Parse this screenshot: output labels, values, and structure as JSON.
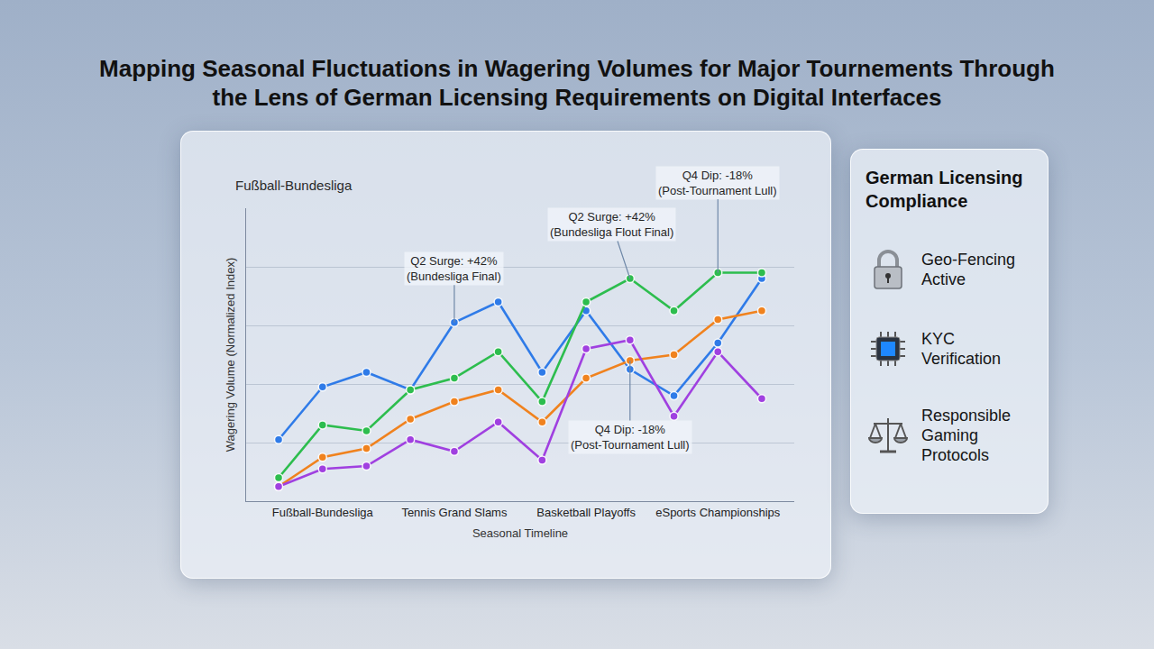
{
  "chart_data": {
    "type": "line",
    "title": "Mapping Seasonal Fluctuations in Wagering Volumes for Major Tournements Through the Lens of German Licensing Requirements on Digital Interfaces",
    "subtitle": "Fußball-Bundesliga",
    "x_label": "Seasonal Timeline",
    "y_label": "Wagering Volume (Normalized Index)",
    "categories": [
      null,
      "Fußball-Bundesliga",
      null,
      null,
      "Tennis Grand Slams",
      null,
      null,
      "Basketball Playoffs",
      null,
      null,
      "eSports Championships",
      null
    ],
    "series": [
      {
        "color": "#2f7be8",
        "marker": "circle",
        "line_style": "solid",
        "values": [
          21,
          39,
          44,
          38,
          61,
          68,
          44,
          65,
          45,
          36,
          54,
          76
        ]
      },
      {
        "color": "#2dbd4e",
        "marker": "circle",
        "line_style": "solid",
        "values": [
          8,
          26,
          24,
          38,
          42,
          51,
          34,
          68,
          76,
          65,
          78,
          78
        ]
      },
      {
        "color": "#f0821e",
        "marker": "circle",
        "line_style": "solid",
        "values": [
          5,
          15,
          18,
          28,
          34,
          38,
          27,
          42,
          48,
          50,
          62,
          65
        ]
      },
      {
        "color": "#a040e0",
        "marker": "circle",
        "line_style": "solid",
        "values": [
          5,
          11,
          12,
          21,
          17,
          27,
          14,
          52,
          55,
          29,
          51,
          35
        ]
      }
    ],
    "ylim": [
      0,
      100
    ],
    "yticks": [
      0,
      20,
      40,
      60,
      80,
      100
    ],
    "grid": true,
    "tick_labels": "x",
    "annotations": [
      {
        "text": [
          "Q2 Surge: +42%",
          "(Bundesliga Final)"
        ],
        "x": 4,
        "y": 61
      },
      {
        "text": [
          "Q2 Surge: +42%",
          "(Bundesliga Flout Final)"
        ],
        "x": 8,
        "y": 76
      },
      {
        "text": [
          "Q4 Dip: -18%",
          "(Post-Tournament Lull)"
        ],
        "x": 10,
        "y": 78
      },
      {
        "text": [
          "Q4 Dip: -18%",
          "(Post-Tournament Lull)"
        ],
        "x": 8,
        "y": 48
      }
    ]
  },
  "compliance_panel": {
    "title": "German Licensing Compliance",
    "items": [
      "Geo-Fencing Active",
      "KYC Verification",
      "Responsible Gaming Protocols"
    ]
  }
}
